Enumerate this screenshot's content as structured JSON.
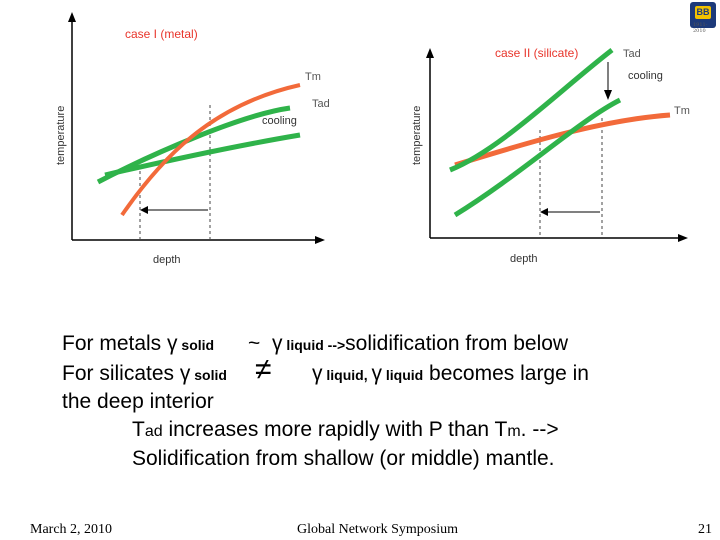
{
  "diagram_left": {
    "title": "case I (metal)",
    "curve_labels": {
      "tm": "Tm",
      "tad": "Tad",
      "cooling": "cooling"
    },
    "axis_x": "depth",
    "axis_y": "temperature"
  },
  "diagram_right": {
    "title": "case II (silicate)",
    "curve_labels": {
      "tad": "Tad",
      "cooling": "cooling",
      "tm": "Tm"
    },
    "axis_x": "depth",
    "axis_y": "temperature"
  },
  "colors": {
    "orange": "#f26a3a",
    "green": "#2fb34a",
    "title_red": "#e8352b"
  },
  "logo": {
    "text": "BB",
    "script": "1911-2010"
  },
  "text": {
    "line1": {
      "lead": "For metals ",
      "gamma": "γ",
      "solid": " solid",
      "sim": "~",
      "gamma2": "γ",
      "liquid_arrow": " liquid -->",
      "tail": "solidification from below"
    },
    "line2": {
      "lead": "For silicates ",
      "gamma": "γ",
      "solid": " solid",
      "neq": "≠",
      "gamma2": "γ",
      "liquid1": " liquid, ",
      "gamma3": "γ",
      "liquid2": " liquid",
      "tail": " becomes large in"
    },
    "line3": "the deep interior",
    "line4": {
      "tad_t": "T",
      "tad_sub": "ad",
      "mid": " increases more rapidly with P than ",
      "tm_t": "T",
      "tm_sub": "m",
      "tail": ". -->"
    },
    "line5": "Solidification from shallow (or middle) mantle."
  },
  "footer": {
    "date": "March 2, 2010",
    "event": "Global Network Symposium",
    "page": "21"
  }
}
